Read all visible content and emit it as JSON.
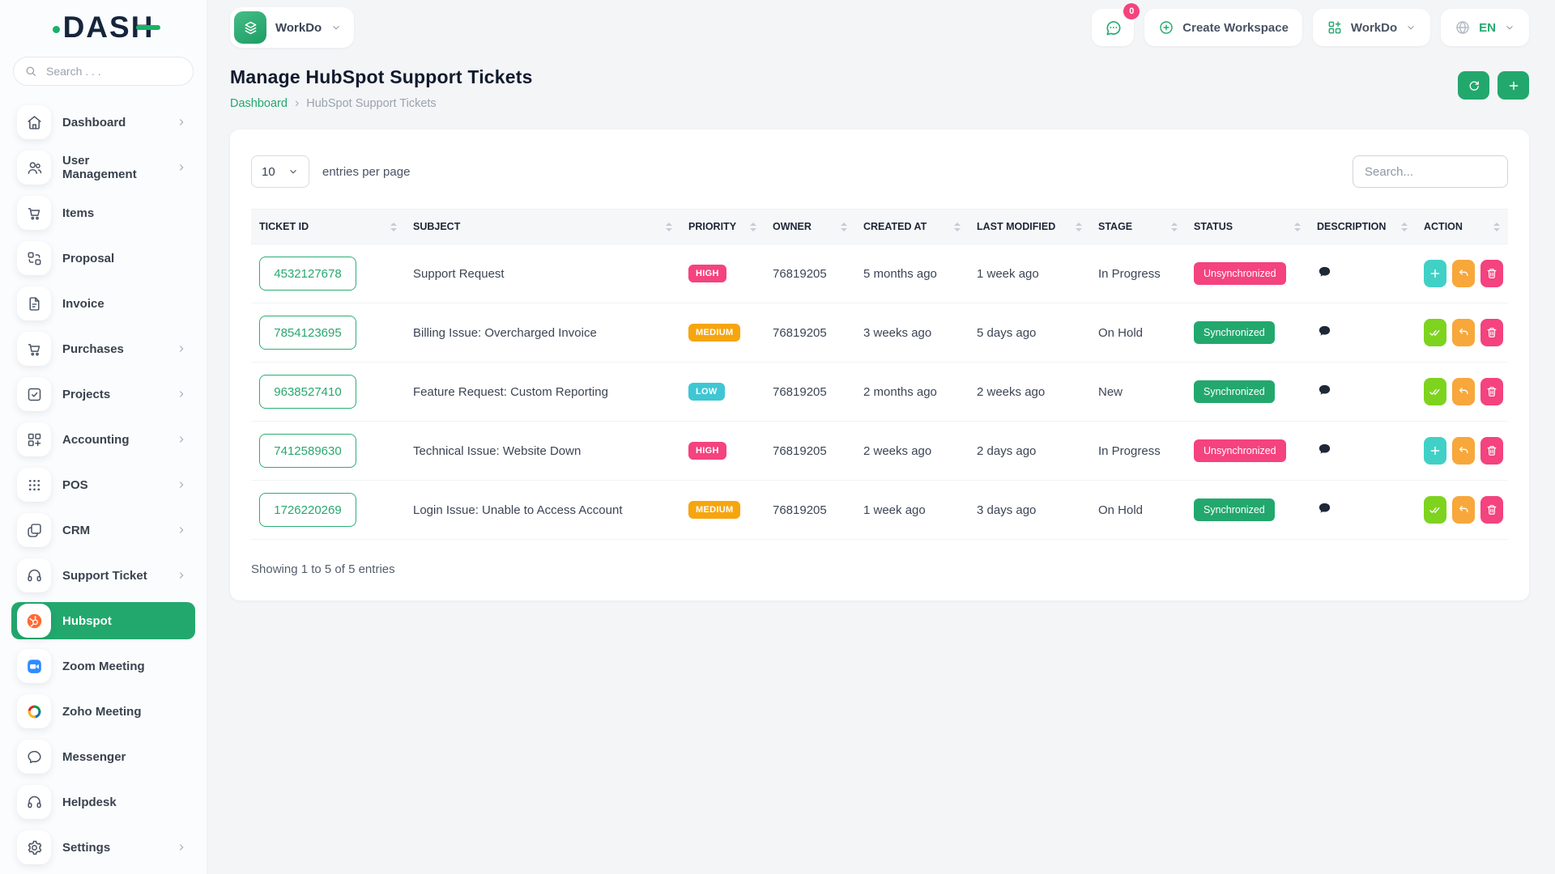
{
  "app": {
    "logo_text": "DASH",
    "sidebar_search_placeholder": "Search . . ."
  },
  "sidebar": {
    "items": [
      {
        "label": "Dashboard",
        "icon": "home-icon",
        "expandable": true
      },
      {
        "label": "User Management",
        "icon": "users-icon",
        "expandable": true
      },
      {
        "label": "Items",
        "icon": "cart-icon",
        "expandable": false
      },
      {
        "label": "Proposal",
        "icon": "swap-grid-icon",
        "expandable": false
      },
      {
        "label": "Invoice",
        "icon": "file-icon",
        "expandable": false
      },
      {
        "label": "Purchases",
        "icon": "cart-icon",
        "expandable": true
      },
      {
        "label": "Projects",
        "icon": "check-square-icon",
        "expandable": true
      },
      {
        "label": "Accounting",
        "icon": "grid-plus-icon",
        "expandable": true
      },
      {
        "label": "POS",
        "icon": "dots-grid-icon",
        "expandable": true
      },
      {
        "label": "CRM",
        "icon": "copy-squares-icon",
        "expandable": true
      },
      {
        "label": "Support Ticket",
        "icon": "headset-icon",
        "expandable": true
      },
      {
        "label": "Hubspot",
        "icon": "hubspot-icon",
        "expandable": false,
        "active": true
      },
      {
        "label": "Zoom Meeting",
        "icon": "zoom-icon",
        "expandable": false
      },
      {
        "label": "Zoho Meeting",
        "icon": "zoho-icon",
        "expandable": false
      },
      {
        "label": "Messenger",
        "icon": "messenger-icon",
        "expandable": false
      },
      {
        "label": "Helpdesk",
        "icon": "headset-icon",
        "expandable": false
      },
      {
        "label": "Settings",
        "icon": "gear-icon",
        "expandable": true
      }
    ]
  },
  "topbar": {
    "workspace_pill": {
      "label": "WorkDo",
      "icon": "layers-icon"
    },
    "messages_button": {
      "icon": "chat-dots-icon",
      "badge": "0"
    },
    "create_workspace": {
      "label": "Create Workspace",
      "icon": "plus-circle-icon"
    },
    "workdo_menu": {
      "label": "WorkDo",
      "icon": "grid-add-icon"
    },
    "language_menu": {
      "label": "EN",
      "icon": "globe-icon"
    }
  },
  "page": {
    "title": "Manage HubSpot Support Tickets",
    "breadcrumb": [
      "Dashboard",
      "HubSpot Support Tickets"
    ],
    "breadcrumb_separator": "›",
    "header_actions": [
      {
        "name": "refresh",
        "icon": "refresh-icon"
      },
      {
        "name": "add",
        "icon": "plus-icon"
      }
    ]
  },
  "controls": {
    "page_size_value": "10",
    "entries_label": "entries per page",
    "search_placeholder": "Search..."
  },
  "table": {
    "columns": [
      "TICKET ID",
      "SUBJECT",
      "PRIORITY",
      "OWNER",
      "CREATED AT",
      "LAST MODIFIED",
      "STAGE",
      "STATUS",
      "DESCRIPTION",
      "ACTION"
    ],
    "rows": [
      {
        "ticket_id": "4532127678",
        "subject": "Support Request",
        "priority": "HIGH",
        "owner": "76819205",
        "created_at": "5 months ago",
        "last_modified": "1 week ago",
        "stage": "In Progress",
        "status": "Unsynchronized"
      },
      {
        "ticket_id": "7854123695",
        "subject": "Billing Issue: Overcharged Invoice",
        "priority": "MEDIUM",
        "owner": "76819205",
        "created_at": "3 weeks ago",
        "last_modified": "5 days ago",
        "stage": "On Hold",
        "status": "Synchronized"
      },
      {
        "ticket_id": "9638527410",
        "subject": "Feature Request: Custom Reporting",
        "priority": "LOW",
        "owner": "76819205",
        "created_at": "2 months ago",
        "last_modified": "2 weeks ago",
        "stage": "New",
        "status": "Synchronized"
      },
      {
        "ticket_id": "7412589630",
        "subject": "Technical Issue: Website Down",
        "priority": "HIGH",
        "owner": "76819205",
        "created_at": "2 weeks ago",
        "last_modified": "2 days ago",
        "stage": "In Progress",
        "status": "Unsynchronized"
      },
      {
        "ticket_id": "1726220269",
        "subject": "Login Issue: Unable to Access Account",
        "priority": "MEDIUM",
        "owner": "76819205",
        "created_at": "1 week ago",
        "last_modified": "3 days ago",
        "stage": "On Hold",
        "status": "Synchronized"
      }
    ],
    "footer": "Showing 1 to 5 of 5 entries",
    "description_icon": "comment-icon",
    "row_actions": {
      "synchronized": [
        "double-check-icon",
        "undo-icon",
        "trash-icon"
      ],
      "unsynchronized": [
        "plus-icon",
        "undo-icon",
        "trash-icon"
      ]
    }
  },
  "colors": {
    "primary_green": "#22A86D",
    "priority": {
      "HIGH": "#F4437E",
      "MEDIUM": "#F7A50F",
      "LOW": "#3FC6D4"
    },
    "status": {
      "Synchronized": "#22A86D",
      "Unsynchronized": "#F4437E"
    },
    "action_buttons": {
      "sync_check": "#7ED31F",
      "unsync_add": "#41D0C6",
      "undo": "#F8A73B",
      "delete": "#F4437E"
    }
  }
}
